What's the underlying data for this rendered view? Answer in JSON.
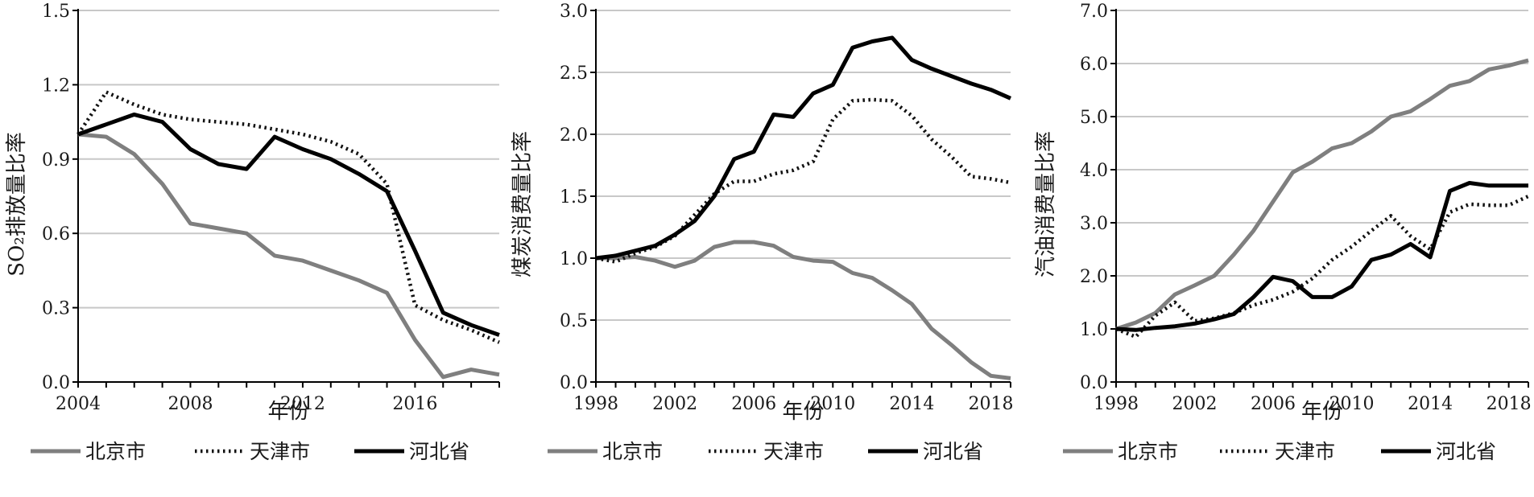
{
  "chart_data": [
    {
      "type": "line",
      "ylabel": "SO₂排放量比率",
      "xlabel": "年份",
      "xlim": [
        2004,
        2019
      ],
      "ylim": [
        0,
        1.5
      ],
      "x_ticks": [
        2004,
        2008,
        2012,
        2016
      ],
      "x_tick_labels": [
        "2004",
        "2008",
        "2012",
        "2016"
      ],
      "y_ticks": [
        0,
        0.3,
        0.6,
        0.9,
        1.2,
        1.5
      ],
      "y_tick_labels": [
        "0.0",
        "0.3",
        "0.6",
        "0.9",
        "1.2",
        "1.5"
      ],
      "grid": "horizontal",
      "legend_position": "bottom",
      "x": [
        2004,
        2005,
        2006,
        2007,
        2008,
        2009,
        2010,
        2011,
        2012,
        2013,
        2014,
        2015,
        2016,
        2017,
        2018,
        2019
      ],
      "series": [
        {
          "name": "北京市",
          "values": [
            1.0,
            0.99,
            0.92,
            0.8,
            0.64,
            0.62,
            0.6,
            0.51,
            0.49,
            0.45,
            0.41,
            0.36,
            0.17,
            0.02,
            0.05,
            0.03
          ]
        },
        {
          "name": "天津市",
          "values": [
            1.0,
            1.17,
            1.12,
            1.08,
            1.06,
            1.05,
            1.04,
            1.02,
            1.0,
            0.97,
            0.92,
            0.8,
            0.31,
            0.25,
            0.21,
            0.16
          ]
        },
        {
          "name": "河北省",
          "values": [
            1.0,
            1.04,
            1.08,
            1.05,
            0.94,
            0.88,
            0.86,
            0.99,
            0.94,
            0.9,
            0.84,
            0.77,
            0.53,
            0.28,
            0.23,
            0.19
          ]
        }
      ]
    },
    {
      "type": "line",
      "ylabel": "煤炭消费量比率",
      "xlabel": "年份",
      "xlim": [
        1998,
        2019
      ],
      "ylim": [
        0,
        3.0
      ],
      "x_ticks": [
        1998,
        2002,
        2006,
        2010,
        2014,
        2018
      ],
      "x_tick_labels": [
        "1998",
        "2002",
        "2006",
        "2010",
        "2014",
        "2018"
      ],
      "y_ticks": [
        0,
        0.5,
        1.0,
        1.5,
        2.0,
        2.5,
        3.0
      ],
      "y_tick_labels": [
        "0.0",
        "0.5",
        "1.0",
        "1.5",
        "2.0",
        "2.5",
        "3.0"
      ],
      "grid": "horizontal",
      "legend_position": "bottom",
      "x": [
        1998,
        1999,
        2000,
        2001,
        2002,
        2003,
        2004,
        2005,
        2006,
        2007,
        2008,
        2009,
        2010,
        2011,
        2012,
        2013,
        2014,
        2015,
        2016,
        2017,
        2018,
        2019
      ],
      "series": [
        {
          "name": "北京市",
          "values": [
            1.0,
            1.0,
            1.01,
            0.98,
            0.93,
            0.98,
            1.09,
            1.13,
            1.13,
            1.1,
            1.01,
            0.98,
            0.97,
            0.88,
            0.84,
            0.74,
            0.63,
            0.43,
            0.3,
            0.16,
            0.05,
            0.03
          ]
        },
        {
          "name": "天津市",
          "values": [
            1.0,
            0.97,
            1.04,
            1.09,
            1.18,
            1.35,
            1.52,
            1.62,
            1.62,
            1.68,
            1.71,
            1.78,
            2.12,
            2.27,
            2.28,
            2.27,
            2.15,
            1.96,
            1.82,
            1.66,
            1.64,
            1.61
          ]
        },
        {
          "name": "河北省",
          "values": [
            1.0,
            1.02,
            1.06,
            1.1,
            1.19,
            1.3,
            1.5,
            1.8,
            1.86,
            2.16,
            2.14,
            2.33,
            2.4,
            2.7,
            2.75,
            2.78,
            2.6,
            2.53,
            2.47,
            2.41,
            2.36,
            2.29
          ]
        }
      ]
    },
    {
      "type": "line",
      "ylabel": "汽油消费量比率",
      "xlabel": "年份",
      "xlim": [
        1998,
        2019
      ],
      "ylim": [
        0,
        7.0
      ],
      "x_ticks": [
        1998,
        2002,
        2006,
        2010,
        2014,
        2018
      ],
      "x_tick_labels": [
        "1998",
        "2002",
        "2006",
        "2010",
        "2014",
        "2018"
      ],
      "y_ticks": [
        0,
        1,
        2,
        3,
        4,
        5,
        6,
        7
      ],
      "y_tick_labels": [
        "0.0",
        "1.0",
        "2.0",
        "3.0",
        "4.0",
        "5.0",
        "6.0",
        "7.0"
      ],
      "grid": "horizontal",
      "legend_position": "bottom",
      "x": [
        1998,
        1999,
        2000,
        2001,
        2002,
        2003,
        2004,
        2005,
        2006,
        2007,
        2008,
        2009,
        2010,
        2011,
        2012,
        2013,
        2014,
        2015,
        2016,
        2017,
        2018,
        2019
      ],
      "series": [
        {
          "name": "北京市",
          "values": [
            1.0,
            1.12,
            1.3,
            1.65,
            1.82,
            2.0,
            2.4,
            2.85,
            3.4,
            3.95,
            4.15,
            4.4,
            4.5,
            4.72,
            5.0,
            5.1,
            5.33,
            5.58,
            5.67,
            5.89,
            5.96,
            6.06
          ]
        },
        {
          "name": "天津市",
          "values": [
            1.0,
            0.85,
            1.25,
            1.5,
            1.15,
            1.2,
            1.3,
            1.45,
            1.55,
            1.7,
            1.95,
            2.3,
            2.55,
            2.85,
            3.13,
            2.75,
            2.5,
            3.2,
            3.35,
            3.33,
            3.33,
            3.5
          ]
        },
        {
          "name": "河北省",
          "values": [
            1.0,
            0.98,
            1.02,
            1.05,
            1.1,
            1.18,
            1.28,
            1.6,
            1.98,
            1.9,
            1.6,
            1.6,
            1.8,
            2.3,
            2.4,
            2.6,
            2.35,
            3.6,
            3.75,
            3.7,
            3.7,
            3.7
          ]
        }
      ]
    }
  ],
  "legend_styles": [
    {
      "series": "北京市",
      "color": "#7f7f7f",
      "dash": "solid"
    },
    {
      "series": "天津市",
      "color": "#111111",
      "dash": "dotted"
    },
    {
      "series": "河北省",
      "color": "#000000",
      "dash": "solid"
    }
  ]
}
